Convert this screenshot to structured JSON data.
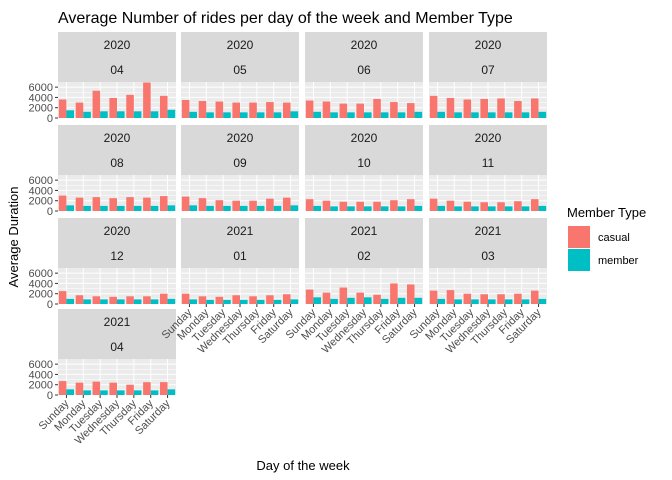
{
  "chart_data": {
    "type": "bar",
    "title": "Average Number of rides per day of the week and Member Type",
    "xlabel": "Day of the week",
    "ylabel": "Average Duration",
    "ylim": [
      0,
      7000
    ],
    "yticks": [
      "0",
      "2000",
      "4000",
      "6000"
    ],
    "yticks_values": [
      0,
      2000,
      4000,
      6000
    ],
    "categories": [
      "Sunday",
      "Monday",
      "Tuesday",
      "Wednesday",
      "Thursday",
      "Friday",
      "Saturday"
    ],
    "legend": {
      "title": "Member Type",
      "position": "right",
      "items": [
        {
          "name": "casual",
          "color": "#F8766D"
        },
        {
          "name": "member",
          "color": "#00BFC4"
        }
      ]
    },
    "grid": true,
    "panels": [
      {
        "year": "2020",
        "month": "04",
        "casual": [
          3600,
          3000,
          5300,
          3900,
          4500,
          6900,
          4300
        ],
        "member": [
          1500,
          1200,
          1300,
          1300,
          1300,
          1300,
          1600
        ]
      },
      {
        "year": "2020",
        "month": "05",
        "casual": [
          3500,
          3300,
          3200,
          3000,
          3000,
          3100,
          3000
        ],
        "member": [
          1200,
          1100,
          1100,
          1100,
          1100,
          1100,
          1300
        ]
      },
      {
        "year": "2020",
        "month": "06",
        "casual": [
          3400,
          3200,
          2800,
          2800,
          3700,
          3100,
          2900
        ],
        "member": [
          1200,
          1100,
          1100,
          1100,
          1100,
          1100,
          1200
        ]
      },
      {
        "year": "2020",
        "month": "07",
        "casual": [
          4300,
          3900,
          3600,
          3700,
          3800,
          3300,
          3800
        ],
        "member": [
          1200,
          1100,
          1100,
          1100,
          1100,
          1100,
          1200
        ]
      },
      {
        "year": "2020",
        "month": "08",
        "casual": [
          3000,
          2600,
          2700,
          2500,
          2700,
          2600,
          2900
        ],
        "member": [
          1100,
          1000,
          1000,
          1000,
          1000,
          1000,
          1100
        ]
      },
      {
        "year": "2020",
        "month": "09",
        "casual": [
          2800,
          2500,
          2100,
          2000,
          2000,
          2400,
          2600
        ],
        "member": [
          1100,
          1000,
          1000,
          1000,
          1000,
          1000,
          1100
        ]
      },
      {
        "year": "2020",
        "month": "10",
        "casual": [
          2300,
          2000,
          1800,
          1800,
          1800,
          2100,
          2300
        ],
        "member": [
          1000,
          900,
          900,
          900,
          900,
          900,
          1000
        ]
      },
      {
        "year": "2020",
        "month": "11",
        "casual": [
          2400,
          2000,
          1800,
          1700,
          1700,
          1900,
          2300
        ],
        "member": [
          1000,
          900,
          900,
          900,
          900,
          900,
          1000
        ]
      },
      {
        "year": "2020",
        "month": "12",
        "casual": [
          2500,
          1700,
          1500,
          1400,
          1500,
          1500,
          2000
        ],
        "member": [
          1000,
          900,
          900,
          900,
          900,
          900,
          1000
        ]
      },
      {
        "year": "2021",
        "month": "01",
        "casual": [
          2000,
          1500,
          1400,
          1700,
          1500,
          1700,
          1900
        ],
        "member": [
          900,
          800,
          800,
          800,
          800,
          800,
          900
        ]
      },
      {
        "year": "2021",
        "month": "02",
        "casual": [
          2800,
          2200,
          3200,
          2200,
          1800,
          4000,
          3800
        ],
        "member": [
          1300,
          1000,
          1200,
          1300,
          1000,
          1200,
          1200
        ]
      },
      {
        "year": "2021",
        "month": "03",
        "casual": [
          2600,
          2700,
          2000,
          1900,
          1900,
          2000,
          2600
        ],
        "member": [
          1000,
          900,
          900,
          900,
          900,
          900,
          1000
        ]
      },
      {
        "year": "2021",
        "month": "04",
        "casual": [
          2700,
          2400,
          2600,
          2400,
          2000,
          2500,
          2500
        ],
        "member": [
          1100,
          900,
          900,
          900,
          900,
          900,
          1100
        ]
      }
    ]
  }
}
